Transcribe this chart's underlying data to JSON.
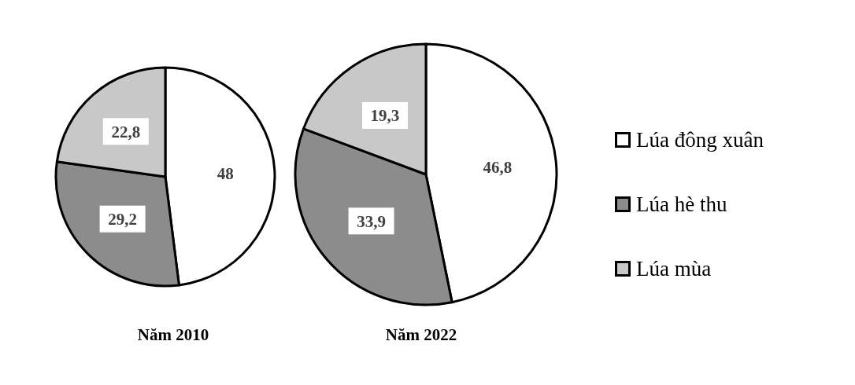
{
  "chart_data": [
    {
      "type": "pie",
      "title": "Năm 2010",
      "categories": [
        "Lúa đông xuân",
        "Lúa hè thu",
        "Lúa mùa"
      ],
      "values": [
        48,
        29.2,
        22.8
      ],
      "value_labels": [
        "48",
        "29,2",
        "22,8"
      ],
      "colors": [
        "#ffffff",
        "#8c8c8c",
        "#c8c8c8"
      ],
      "legend": "right"
    },
    {
      "type": "pie",
      "title": "Năm 2022",
      "categories": [
        null,
        null,
        null
      ],
      "values": [
        46.8,
        33.9,
        19.3
      ],
      "value_labels": [
        "46,8",
        "33,9",
        "19,3"
      ],
      "colors": [
        "#ffffff",
        "#8c8c8c",
        "#c8c8c8"
      ]
    }
  ]
}
